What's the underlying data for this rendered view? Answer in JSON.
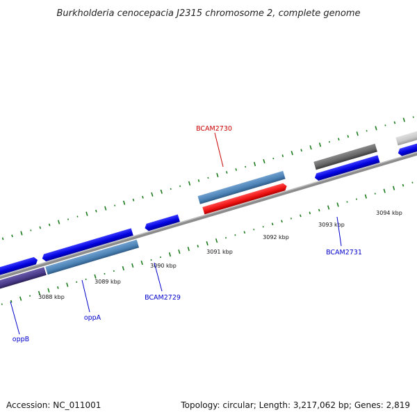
{
  "title": "Burkholderia cenocepacia J2315 chromosome 2, complete genome",
  "footer": {
    "accession": "Accession: NC_011001",
    "summary": "Topology: circular; Length: 3,217,062 bp; Genes: 2,819"
  },
  "ticks": [
    "3088 kbp",
    "3089 kbp",
    "3090 kbp",
    "3091 kbp",
    "3092 kbp",
    "3093 kbp",
    "3094 kbp"
  ],
  "gene_labels": [
    {
      "text": "BCAM2730",
      "color": "#cc0000"
    },
    {
      "text": "BCAM2731",
      "color": "#0000cc"
    },
    {
      "text": "BCAM2729",
      "color": "#0000cc"
    },
    {
      "text": "oppA",
      "color": "#0000cc"
    },
    {
      "text": "oppB",
      "color": "#0000cc"
    }
  ],
  "colors": {
    "backbone": "#8c8c8c",
    "gc_dots": "#1a7a1a",
    "forward_cds": "#0a0aee",
    "highlight_cds": "#ee1111",
    "steel_blue": "#4b82b5",
    "dark_grey": "#666666",
    "light_grey": "#c8c8c8",
    "purple": "#4a3a8a"
  }
}
